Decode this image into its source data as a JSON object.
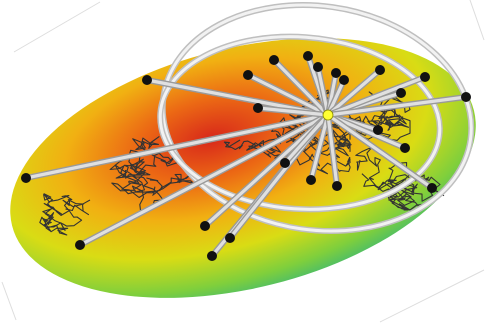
{
  "scene": {
    "kind": "3d-ellipsoid-render",
    "subjects": [
      "ellipsoid-surface",
      "tangled-polymer-path",
      "radial-spokes",
      "vertex-nodes",
      "ring-orbits",
      "hub-node"
    ],
    "colors": {
      "surface_hot": "#d8281a",
      "surface_mid": "#f19a12",
      "surface_warm": "#e4d512",
      "surface_cool": "#8fd23a",
      "surface_cold": "#1ab39a",
      "spoke": "#c8c8c8",
      "ring": "#e8e8e8",
      "node": "#111111",
      "hub": "#ffff33",
      "path": "#333333",
      "frame": "#d9d9d9"
    }
  }
}
